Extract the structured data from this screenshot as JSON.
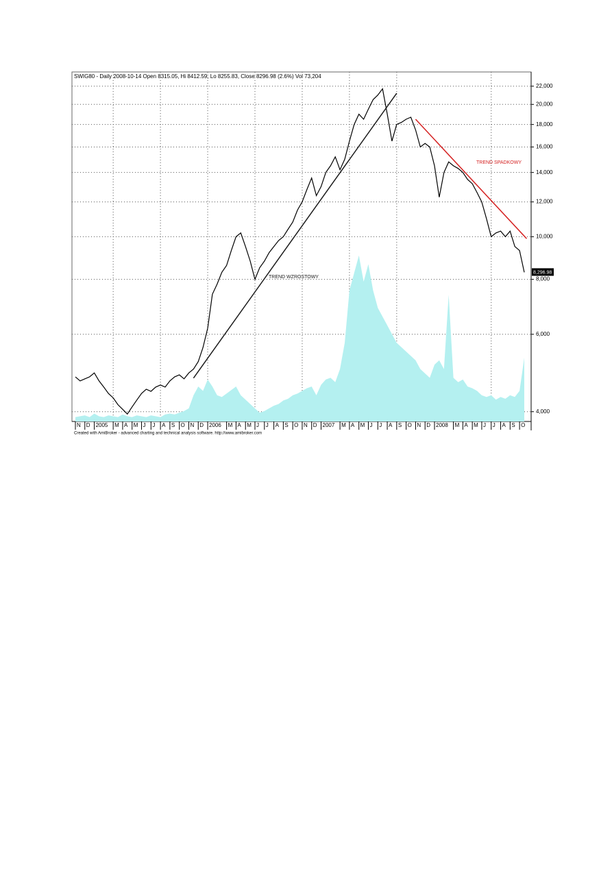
{
  "chart_data": {
    "type": "line",
    "title": "SWIG80 - Daily 2008-10-14 Open 8315.05, Hi 8412.59, Lo 8255.83, Close 8296.98 (2.6%) Vol 73,204",
    "footer": "Created with AmiBroker - advanced charting and technical analysis software. http://www.amibroker.com",
    "log_scale": true,
    "grid": true,
    "categories": [
      "N",
      null,
      "D",
      null,
      "2005",
      null,
      null,
      null,
      "M",
      null,
      "A",
      null,
      "M",
      null,
      "J",
      null,
      "J",
      null,
      "A",
      null,
      "S",
      null,
      "O",
      null,
      "N",
      null,
      "D",
      null,
      "2006",
      null,
      null,
      null,
      "M",
      null,
      "A",
      null,
      "M",
      null,
      "J",
      null,
      "J",
      null,
      "A",
      null,
      "S",
      null,
      "O",
      null,
      "N",
      null,
      "D",
      null,
      "2007",
      null,
      null,
      null,
      "M",
      null,
      "A",
      null,
      "M",
      null,
      "J",
      null,
      "J",
      null,
      "A",
      null,
      "S",
      null,
      "O",
      null,
      "N",
      null,
      "D",
      null,
      "2008",
      null,
      null,
      null,
      "M",
      null,
      "A",
      null,
      "M",
      null,
      "J",
      null,
      "J",
      null,
      "A",
      null,
      "S",
      null,
      "O",
      null
    ],
    "series": [
      {
        "name": "SWIG80",
        "color": "#000000",
        "values": [
          4800,
          4700,
          4750,
          4800,
          4900,
          4700,
          4550,
          4400,
          4300,
          4150,
          4050,
          3950,
          4100,
          4250,
          4400,
          4500,
          4450,
          4550,
          4600,
          4550,
          4700,
          4800,
          4850,
          4750,
          4900,
          5000,
          5200,
          5600,
          6200,
          7400,
          7800,
          8300,
          8600,
          9300,
          10000,
          10200,
          9500,
          8800,
          8000,
          8500,
          8800,
          9200,
          9500,
          9800,
          10000,
          10400,
          10800,
          11500,
          12000,
          12800,
          13600,
          12400,
          13000,
          14000,
          14500,
          15200,
          14200,
          15000,
          16500,
          18000,
          19000,
          18500,
          19500,
          20500,
          21000,
          21700,
          19000,
          16500,
          18000,
          18200,
          18500,
          18700,
          17500,
          16000,
          16300,
          16000,
          14500,
          12300,
          14000,
          14800,
          14500,
          14300,
          14000,
          13500,
          13200,
          12600,
          12000,
          11000,
          10000,
          10200,
          10300,
          10000,
          10300,
          9500,
          9300,
          8296.98
        ]
      },
      {
        "name": "Vol",
        "color": "#b4f0f0",
        "axis": "y2",
        "values": [
          5000,
          6000,
          7000,
          5000,
          9000,
          6000,
          5000,
          7000,
          6000,
          5000,
          8000,
          6000,
          5000,
          7000,
          6000,
          5000,
          7000,
          6000,
          5000,
          8000,
          9000,
          8000,
          10000,
          12000,
          15000,
          30000,
          40000,
          35000,
          48000,
          40000,
          30000,
          28000,
          32000,
          36000,
          40000,
          30000,
          25000,
          20000,
          15000,
          10000,
          12000,
          15000,
          18000,
          20000,
          24000,
          26000,
          30000,
          32000,
          35000,
          38000,
          40000,
          30000,
          42000,
          48000,
          50000,
          45000,
          60000,
          90000,
          150000,
          170000,
          190000,
          160000,
          180000,
          150000,
          130000,
          120000,
          110000,
          100000,
          90000,
          85000,
          80000,
          75000,
          70000,
          60000,
          55000,
          50000,
          65000,
          70000,
          60000,
          145000,
          50000,
          45000,
          48000,
          40000,
          38000,
          35000,
          30000,
          28000,
          30000,
          25000,
          28000,
          26000,
          30000,
          28000,
          35000,
          73204
        ]
      }
    ],
    "ylim": [
      3800,
      23700
    ],
    "yticks": [
      {
        "value": 4000,
        "label": "4,000"
      },
      {
        "value": 6000,
        "label": "6,000"
      },
      {
        "value": 8000,
        "label": "8,000"
      },
      {
        "value": 10000,
        "label": "10,000"
      },
      {
        "value": 12000,
        "label": "12,000"
      },
      {
        "value": 14000,
        "label": "14,000"
      },
      {
        "value": 16000,
        "label": "16,000"
      },
      {
        "value": 18000,
        "label": "18,000"
      },
      {
        "value": 20000,
        "label": "20,000"
      },
      {
        "value": 22000,
        "label": "22,000"
      }
    ],
    "y2lim": [
      0,
      400000
    ],
    "last_price_label": "8,296.98",
    "trendlines": [
      {
        "label": "TREND WZROSTOWY",
        "color": "#1a1a1a",
        "start": [
          25,
          4770
        ],
        "end": [
          68,
          21200
        ]
      },
      {
        "label": "TREND SPADKOWY",
        "color": "#d42020",
        "start": [
          72,
          18500
        ],
        "end": [
          95.5,
          9900
        ]
      }
    ]
  }
}
